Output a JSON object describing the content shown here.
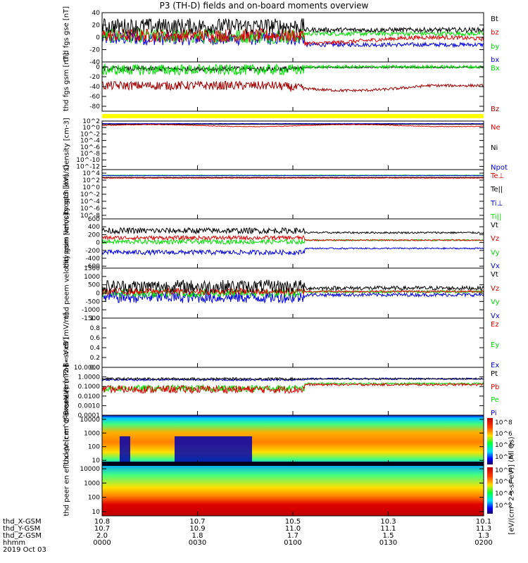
{
  "title": "P3 (TH-D) fields and on-board moments overview",
  "date": "2019 Oct 03",
  "colors": {
    "black": "#000000",
    "red": "#e00000",
    "green": "#00e000",
    "blue": "#0000e0",
    "darkred": "#a00000",
    "yellow": "#ffff00"
  },
  "panels": [
    {
      "id": "fgs",
      "ylabel": [
        "thd",
        "fgs",
        "gse",
        "[nT]"
      ],
      "ylim": [
        -40,
        40
      ],
      "ticks": [
        "40",
        "20",
        "0",
        "-20",
        "-40"
      ],
      "tickvals": [
        40,
        20,
        0,
        -20,
        -40
      ],
      "legend": [
        {
          "label": "Bt",
          "color": "#000000"
        },
        {
          "label": "bz",
          "color": "#e00000"
        },
        {
          "label": "by",
          "color": "#00e000"
        },
        {
          "label": "bx",
          "color": "#0000e0"
        }
      ]
    },
    {
      "id": "fgs-gsm",
      "ylabel": [
        "thd",
        "fgs",
        "gsm",
        "[nT]"
      ],
      "ylim": [
        -90,
        10
      ],
      "ticks": [
        "0",
        "-20",
        "-40",
        "-60",
        "-80"
      ],
      "tickvals": [
        0,
        -20,
        -40,
        -60,
        -80
      ],
      "legend": [
        {
          "label": "Bx",
          "color": "#00e000"
        },
        {
          "label": "Bz",
          "color": "#a00000"
        }
      ]
    },
    {
      "id": "density",
      "ylabel": [
        "Density",
        "[cm-3]"
      ],
      "ylim": [
        -13,
        2
      ],
      "ticks": [
        "10^2",
        "10^0",
        "10^-2",
        "10^-4",
        "10^-6",
        "10^-8",
        "10^-10",
        "10^-12"
      ],
      "tickvals": [
        2,
        0,
        -2,
        -4,
        -6,
        -8,
        -10,
        -12
      ],
      "legend": [
        {
          "label": "Ne",
          "color": "#e00000"
        },
        {
          "label": "Ni",
          "color": "#000000"
        },
        {
          "label": "Npot",
          "color": "#0000e0"
        }
      ]
    },
    {
      "id": "temp",
      "ylabel": [
        "moqt3",
        "[eV]"
      ],
      "ylim": [
        -9,
        5
      ],
      "ticks": [
        "10^4",
        "10^2",
        "10^0",
        "10^-2",
        "10^-4",
        "10^-6",
        "10^-8"
      ],
      "tickvals": [
        4,
        2,
        0,
        -2,
        -4,
        -6,
        -8
      ],
      "legend": [
        {
          "label": "Te⊥",
          "color": "#e00000"
        },
        {
          "label": "Te||",
          "color": "#000000"
        },
        {
          "label": "Ti⊥",
          "color": "#0000e0"
        },
        {
          "label": "Ti||",
          "color": "#00e000"
        }
      ]
    },
    {
      "id": "peim-vel",
      "ylabel": [
        "thd",
        "peim",
        "velocity",
        "gsm",
        "[km/s]"
      ],
      "ylim": [
        -650,
        600
      ],
      "ticks": [
        "600",
        "400",
        "200",
        "0",
        "-200",
        "-400",
        "-600"
      ],
      "tickvals": [
        600,
        400,
        200,
        0,
        -200,
        -400,
        -600
      ],
      "legend": [
        {
          "label": "Vt",
          "color": "#000000"
        },
        {
          "label": "Vz",
          "color": "#e00000"
        },
        {
          "label": "Vy",
          "color": "#00e000"
        },
        {
          "label": "Vx",
          "color": "#0000e0"
        }
      ]
    },
    {
      "id": "peem-vel",
      "ylabel": [
        "thd",
        "peem",
        "velocity",
        "gsm",
        "[km/s]"
      ],
      "ylim": [
        -1500,
        1500
      ],
      "ticks": [
        "1500",
        "1000",
        "500",
        "0",
        "-500",
        "-1000",
        "-1500"
      ],
      "tickvals": [
        1500,
        1000,
        500,
        0,
        -500,
        -1000,
        -1500
      ],
      "legend": [
        {
          "label": "Vt",
          "color": "#000000"
        },
        {
          "label": "Vz",
          "color": "#e00000"
        },
        {
          "label": "Vy",
          "color": "#00e000"
        },
        {
          "label": "Vx",
          "color": "#0000e0"
        }
      ]
    },
    {
      "id": "efield",
      "ylabel": [
        "E=-VxB",
        "[mV/m]"
      ],
      "ylim": [
        0,
        1
      ],
      "ticks": [
        "1.0",
        "0.8",
        "0.6",
        "0.4",
        "0.2",
        "0.0"
      ],
      "tickvals": [
        1,
        0.8,
        0.6,
        0.4,
        0.2,
        0
      ],
      "legend": [
        {
          "label": "Ez",
          "color": "#e00000"
        },
        {
          "label": "Ey",
          "color": "#00e000"
        },
        {
          "label": "Ex",
          "color": "#0000e0"
        }
      ]
    },
    {
      "id": "pressure",
      "ylabel": [
        "Pressure",
        "[nPa]"
      ],
      "ylim": [
        -4,
        1
      ],
      "ticks": [
        "10.0000",
        "1.0000",
        "0.1000",
        "0.0100",
        "0.0010",
        "0.0001"
      ],
      "tickvals": [
        1,
        0,
        -1,
        -2,
        -3,
        -4
      ],
      "legend": [
        {
          "label": "Pt",
          "color": "#000000"
        },
        {
          "label": "Pb",
          "color": "#e00000"
        },
        {
          "label": "Pe",
          "color": "#00e000"
        },
        {
          "label": "Pi",
          "color": "#0000e0"
        }
      ]
    },
    {
      "id": "peir",
      "ylabel": [
        "thd",
        "peir",
        "en",
        "eflux",
        "eV",
        "(cm^2-s-",
        "sr-eV)"
      ],
      "ylim": [
        0.7,
        4.3
      ],
      "ticks": [
        "10000",
        "1000",
        "100",
        "10"
      ],
      "tickvals": [
        4,
        3,
        2,
        1
      ],
      "legend": []
    },
    {
      "id": "peer",
      "ylabel": [
        "thd",
        "peer",
        "en",
        "eflux",
        "eV",
        "(cm^2-s-",
        "sr-eV)"
      ],
      "ylim": [
        0.7,
        4.3
      ],
      "ticks": [
        "10000",
        "1000",
        "100",
        "10"
      ],
      "tickvals": [
        4,
        3,
        2,
        1
      ],
      "legend": []
    }
  ],
  "colorbar": {
    "labels": [
      "10^8",
      "10^6",
      "10^4",
      "10^2"
    ],
    "title": "[eV/(cm^2-s-sr-eV)] (All Qs)"
  },
  "xaxis": {
    "rows": [
      {
        "name": "thd_X-GSM",
        "values": [
          "10.8",
          "10.7",
          "10.5",
          "10.3",
          "10.1"
        ]
      },
      {
        "name": "thd_Y-GSM",
        "values": [
          "10.7",
          "10.9",
          "11.0",
          "11.1",
          "11.3"
        ]
      },
      {
        "name": "thd_Z-GSM",
        "values": [
          "2.0",
          "1.8",
          "1.7",
          "1.5",
          "1.3"
        ]
      },
      {
        "name": "hhmm",
        "values": [
          "0000",
          "0030",
          "0100",
          "0130",
          "0200"
        ]
      }
    ],
    "mid_x_row": [
      "10.7"
    ]
  },
  "chart_data": {
    "type": "line",
    "title": "P3 (TH-D) fields and on-board moments overview",
    "x_range": [
      "0000",
      "0200"
    ],
    "series": [
      {
        "name": "Bt",
        "approx_level": 12
      },
      {
        "name": "bx",
        "approx_level": -10
      },
      {
        "name": "by",
        "approx_level": 0
      },
      {
        "name": "bz",
        "approx_level": 5
      },
      {
        "name": "Bx",
        "approx_level": 0
      },
      {
        "name": "Bz",
        "approx_level": -40
      },
      {
        "name": "Ne",
        "approx_level": "10^0.8"
      },
      {
        "name": "Ni",
        "approx_level": "10^1"
      },
      {
        "name": "Te||",
        "approx_level": "10^3"
      },
      {
        "name": "Ti||",
        "approx_level": "10^3.5"
      },
      {
        "name": "Vt (peim)",
        "approx_level": 250
      },
      {
        "name": "Vx (peim)",
        "approx_level": -150
      },
      {
        "name": "Pt",
        "approx_level": 0.5
      },
      {
        "name": "Pi",
        "approx_level": 0.4
      }
    ]
  }
}
